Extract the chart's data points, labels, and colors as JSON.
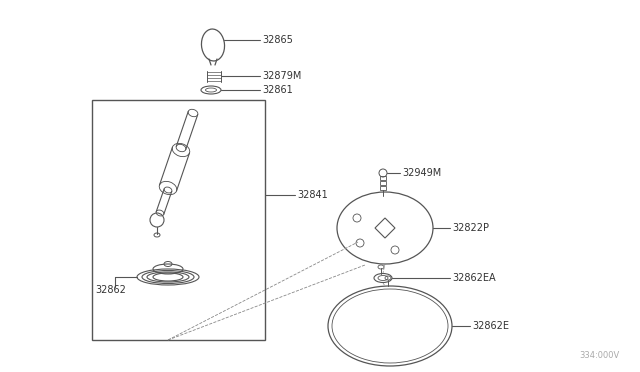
{
  "bg_color": "#ffffff",
  "line_color": "#555555",
  "text_color": "#333333",
  "fig_width": 6.4,
  "fig_height": 3.72,
  "dpi": 100,
  "watermark": "334:000V",
  "label_fs": 7,
  "parts": [
    "32865",
    "32879M",
    "32861",
    "32841",
    "32862",
    "32949M",
    "32822P",
    "32862EA",
    "32862E"
  ]
}
